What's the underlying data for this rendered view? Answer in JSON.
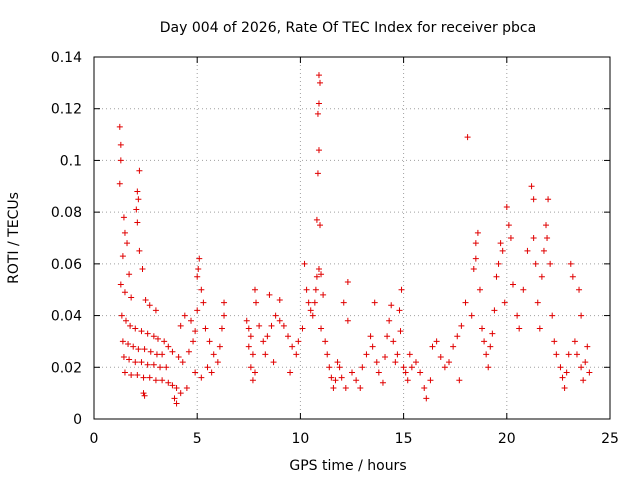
{
  "chart_data": {
    "type": "scatter",
    "title": "Day 004 of 2026, Rate Of TEC Index for receiver pbca",
    "xlabel": "GPS time / hours",
    "ylabel": "ROTI / TECUs",
    "xlim": [
      0,
      25
    ],
    "ylim": [
      0,
      0.14
    ],
    "xticks": [
      0,
      5,
      10,
      15,
      20,
      25
    ],
    "xtick_labels": [
      "0",
      "5",
      "10",
      "15",
      "20",
      "25"
    ],
    "yticks": [
      0,
      0.02,
      0.04,
      0.06,
      0.08,
      0.1,
      0.12,
      0.14
    ],
    "ytick_labels": [
      "0",
      "0.02",
      "0.04",
      "0.06",
      "0.08",
      "0.1",
      "0.12",
      "0.14"
    ],
    "grid": true,
    "marker": "plus",
    "series": [
      {
        "name": "ROTI",
        "color": "#e00000",
        "points": [
          [
            1.25,
            0.113
          ],
          [
            1.3,
            0.106
          ],
          [
            1.3,
            0.1
          ],
          [
            1.25,
            0.091
          ],
          [
            1.45,
            0.078
          ],
          [
            1.5,
            0.072
          ],
          [
            1.6,
            0.068
          ],
          [
            1.4,
            0.063
          ],
          [
            1.7,
            0.056
          ],
          [
            2.2,
            0.096
          ],
          [
            2.1,
            0.088
          ],
          [
            2.15,
            0.085
          ],
          [
            2.05,
            0.081
          ],
          [
            2.1,
            0.076
          ],
          [
            2.2,
            0.065
          ],
          [
            2.35,
            0.058
          ],
          [
            1.3,
            0.052
          ],
          [
            1.5,
            0.049
          ],
          [
            1.8,
            0.047
          ],
          [
            2.5,
            0.046
          ],
          [
            2.7,
            0.044
          ],
          [
            3.0,
            0.042
          ],
          [
            1.35,
            0.04
          ],
          [
            1.55,
            0.038
          ],
          [
            1.75,
            0.036
          ],
          [
            2.0,
            0.035
          ],
          [
            2.3,
            0.034
          ],
          [
            2.6,
            0.033
          ],
          [
            2.9,
            0.032
          ],
          [
            3.1,
            0.031
          ],
          [
            1.4,
            0.03
          ],
          [
            1.65,
            0.029
          ],
          [
            1.9,
            0.028
          ],
          [
            2.15,
            0.027
          ],
          [
            2.45,
            0.027
          ],
          [
            2.75,
            0.026
          ],
          [
            3.05,
            0.025
          ],
          [
            3.3,
            0.025
          ],
          [
            1.45,
            0.024
          ],
          [
            1.7,
            0.023
          ],
          [
            2.0,
            0.022
          ],
          [
            2.3,
            0.022
          ],
          [
            2.6,
            0.021
          ],
          [
            2.9,
            0.021
          ],
          [
            3.2,
            0.02
          ],
          [
            3.5,
            0.02
          ],
          [
            1.5,
            0.018
          ],
          [
            1.8,
            0.017
          ],
          [
            2.1,
            0.017
          ],
          [
            2.4,
            0.016
          ],
          [
            2.7,
            0.016
          ],
          [
            3.0,
            0.015
          ],
          [
            3.3,
            0.015
          ],
          [
            3.6,
            0.014
          ],
          [
            3.8,
            0.013
          ],
          [
            4.0,
            0.012
          ],
          [
            2.45,
            0.009
          ],
          [
            2.4,
            0.01
          ],
          [
            3.9,
            0.008
          ],
          [
            4.0,
            0.006
          ],
          [
            4.2,
            0.01
          ],
          [
            4.5,
            0.012
          ],
          [
            3.4,
            0.03
          ],
          [
            3.6,
            0.028
          ],
          [
            3.8,
            0.026
          ],
          [
            4.1,
            0.024
          ],
          [
            4.3,
            0.022
          ],
          [
            4.6,
            0.026
          ],
          [
            4.8,
            0.03
          ],
          [
            4.9,
            0.034
          ],
          [
            4.7,
            0.038
          ],
          [
            5.0,
            0.042
          ],
          [
            5.05,
            0.058
          ],
          [
            5.1,
            0.062
          ],
          [
            5.0,
            0.055
          ],
          [
            5.2,
            0.05
          ],
          [
            5.3,
            0.045
          ],
          [
            4.4,
            0.04
          ],
          [
            4.2,
            0.036
          ],
          [
            5.4,
            0.035
          ],
          [
            5.6,
            0.03
          ],
          [
            5.8,
            0.025
          ],
          [
            6.0,
            0.022
          ],
          [
            5.5,
            0.02
          ],
          [
            5.7,
            0.018
          ],
          [
            5.2,
            0.016
          ],
          [
            4.9,
            0.018
          ],
          [
            6.1,
            0.028
          ],
          [
            6.2,
            0.035
          ],
          [
            6.3,
            0.04
          ],
          [
            6.3,
            0.045
          ],
          [
            7.4,
            0.038
          ],
          [
            7.5,
            0.035
          ],
          [
            7.6,
            0.032
          ],
          [
            7.8,
            0.05
          ],
          [
            7.85,
            0.045
          ],
          [
            7.5,
            0.028
          ],
          [
            7.7,
            0.025
          ],
          [
            7.6,
            0.02
          ],
          [
            7.7,
            0.015
          ],
          [
            7.8,
            0.018
          ],
          [
            8.0,
            0.036
          ],
          [
            8.2,
            0.03
          ],
          [
            8.4,
            0.032
          ],
          [
            8.6,
            0.036
          ],
          [
            8.8,
            0.04
          ],
          [
            8.5,
            0.048
          ],
          [
            8.3,
            0.025
          ],
          [
            8.7,
            0.022
          ],
          [
            9.0,
            0.038
          ],
          [
            9.2,
            0.036
          ],
          [
            9.4,
            0.032
          ],
          [
            9.0,
            0.046
          ],
          [
            9.6,
            0.028
          ],
          [
            9.8,
            0.025
          ],
          [
            9.5,
            0.018
          ],
          [
            9.9,
            0.03
          ],
          [
            10.1,
            0.035
          ],
          [
            10.2,
            0.06
          ],
          [
            10.3,
            0.05
          ],
          [
            10.4,
            0.045
          ],
          [
            10.5,
            0.042
          ],
          [
            10.6,
            0.04
          ],
          [
            10.7,
            0.045
          ],
          [
            10.75,
            0.05
          ],
          [
            10.8,
            0.055
          ],
          [
            10.9,
            0.058
          ],
          [
            10.85,
            0.095
          ],
          [
            10.9,
            0.104
          ],
          [
            10.9,
            0.122
          ],
          [
            10.95,
            0.13
          ],
          [
            10.85,
            0.118
          ],
          [
            10.9,
            0.133
          ],
          [
            10.8,
            0.077
          ],
          [
            10.95,
            0.075
          ],
          [
            11.0,
            0.056
          ],
          [
            11.1,
            0.048
          ],
          [
            11.0,
            0.035
          ],
          [
            11.2,
            0.03
          ],
          [
            11.3,
            0.025
          ],
          [
            11.4,
            0.02
          ],
          [
            11.5,
            0.016
          ],
          [
            11.6,
            0.012
          ],
          [
            11.7,
            0.015
          ],
          [
            11.8,
            0.022
          ],
          [
            11.9,
            0.02
          ],
          [
            12.0,
            0.016
          ],
          [
            12.2,
            0.012
          ],
          [
            12.1,
            0.045
          ],
          [
            12.3,
            0.038
          ],
          [
            12.3,
            0.053
          ],
          [
            12.5,
            0.018
          ],
          [
            12.7,
            0.015
          ],
          [
            12.9,
            0.012
          ],
          [
            13.0,
            0.02
          ],
          [
            13.2,
            0.025
          ],
          [
            13.4,
            0.032
          ],
          [
            13.5,
            0.028
          ],
          [
            13.6,
            0.045
          ],
          [
            13.7,
            0.022
          ],
          [
            13.8,
            0.018
          ],
          [
            14.0,
            0.014
          ],
          [
            14.1,
            0.024
          ],
          [
            14.2,
            0.032
          ],
          [
            14.3,
            0.038
          ],
          [
            14.4,
            0.044
          ],
          [
            14.5,
            0.03
          ],
          [
            14.6,
            0.022
          ],
          [
            14.7,
            0.025
          ],
          [
            14.8,
            0.042
          ],
          [
            14.9,
            0.05
          ],
          [
            14.85,
            0.034
          ],
          [
            15.0,
            0.02
          ],
          [
            15.1,
            0.018
          ],
          [
            15.2,
            0.015
          ],
          [
            15.3,
            0.025
          ],
          [
            15.4,
            0.02
          ],
          [
            15.6,
            0.022
          ],
          [
            15.8,
            0.018
          ],
          [
            16.0,
            0.012
          ],
          [
            16.1,
            0.008
          ],
          [
            16.3,
            0.015
          ],
          [
            16.4,
            0.028
          ],
          [
            16.6,
            0.03
          ],
          [
            16.8,
            0.024
          ],
          [
            17.0,
            0.02
          ],
          [
            17.2,
            0.022
          ],
          [
            17.4,
            0.028
          ],
          [
            17.6,
            0.032
          ],
          [
            17.8,
            0.036
          ],
          [
            17.7,
            0.015
          ],
          [
            18.0,
            0.045
          ],
          [
            18.1,
            0.109
          ],
          [
            18.3,
            0.04
          ],
          [
            18.4,
            0.058
          ],
          [
            18.5,
            0.062
          ],
          [
            18.6,
            0.072
          ],
          [
            18.5,
            0.068
          ],
          [
            18.7,
            0.05
          ],
          [
            18.8,
            0.035
          ],
          [
            18.9,
            0.03
          ],
          [
            19.0,
            0.025
          ],
          [
            19.1,
            0.02
          ],
          [
            19.2,
            0.028
          ],
          [
            19.3,
            0.033
          ],
          [
            19.4,
            0.042
          ],
          [
            19.5,
            0.055
          ],
          [
            19.6,
            0.06
          ],
          [
            19.7,
            0.068
          ],
          [
            19.8,
            0.065
          ],
          [
            19.9,
            0.045
          ],
          [
            20.0,
            0.082
          ],
          [
            20.1,
            0.075
          ],
          [
            20.2,
            0.07
          ],
          [
            20.3,
            0.052
          ],
          [
            20.5,
            0.04
          ],
          [
            20.6,
            0.035
          ],
          [
            20.8,
            0.05
          ],
          [
            21.0,
            0.065
          ],
          [
            21.2,
            0.09
          ],
          [
            21.3,
            0.085
          ],
          [
            21.3,
            0.07
          ],
          [
            21.4,
            0.06
          ],
          [
            21.5,
            0.045
          ],
          [
            21.6,
            0.035
          ],
          [
            21.7,
            0.055
          ],
          [
            21.8,
            0.065
          ],
          [
            21.9,
            0.075
          ],
          [
            22.0,
            0.085
          ],
          [
            21.95,
            0.07
          ],
          [
            22.1,
            0.06
          ],
          [
            22.2,
            0.04
          ],
          [
            22.3,
            0.03
          ],
          [
            22.4,
            0.025
          ],
          [
            22.6,
            0.02
          ],
          [
            22.7,
            0.016
          ],
          [
            22.8,
            0.012
          ],
          [
            22.9,
            0.018
          ],
          [
            23.0,
            0.025
          ],
          [
            23.1,
            0.06
          ],
          [
            23.2,
            0.055
          ],
          [
            23.3,
            0.03
          ],
          [
            23.4,
            0.025
          ],
          [
            23.5,
            0.05
          ],
          [
            23.6,
            0.04
          ],
          [
            23.6,
            0.02
          ],
          [
            23.7,
            0.015
          ],
          [
            23.8,
            0.022
          ],
          [
            23.9,
            0.028
          ],
          [
            24.0,
            0.018
          ]
        ]
      }
    ]
  }
}
